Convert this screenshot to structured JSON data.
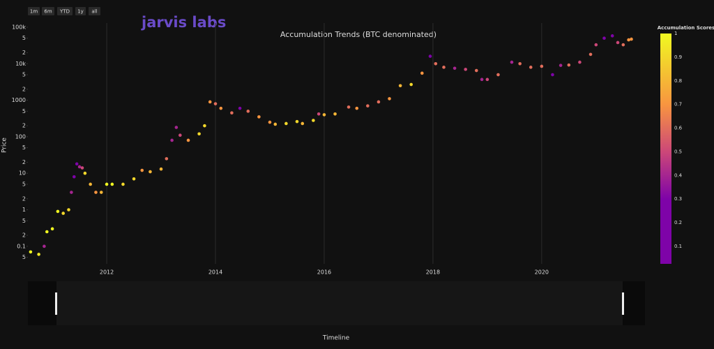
{
  "chart_data": {
    "type": "scatter",
    "title": "Accumulation Trends (BTC denominated)",
    "watermark": "jarvis labs",
    "x_label": "Timeline",
    "y_label": "Price",
    "range_buttons": [
      "1m",
      "6m",
      "YTD",
      "1y",
      "all"
    ],
    "log_y": true,
    "grid": true,
    "xlim": [
      2010.55,
      2021.9
    ],
    "xticks": [
      2012,
      2014,
      2016,
      2018,
      2020
    ],
    "ylim": [
      0.033,
      130000
    ],
    "yticks": [
      {
        "value": 100000,
        "label": "100k"
      },
      {
        "value": 50000,
        "label": "5"
      },
      {
        "value": 20000,
        "label": "2"
      },
      {
        "value": 10000,
        "label": "10k"
      },
      {
        "value": 5000,
        "label": "5"
      },
      {
        "value": 2000,
        "label": "2"
      },
      1000,
      {
        "value": 500,
        "label": "5"
      },
      {
        "value": 200,
        "label": "2"
      },
      100,
      {
        "value": 50,
        "label": "5"
      },
      {
        "value": 20,
        "label": "2"
      },
      10,
      5,
      2,
      1,
      {
        "value": 0.5,
        "label": "5"
      },
      {
        "value": 0.2,
        "label": "2"
      },
      0.1,
      {
        "value": 0.05,
        "label": "5"
      }
    ],
    "x": [
      2010.6,
      2010.75,
      2010.85,
      2010.9,
      2011.0,
      2011.1,
      2011.2,
      2011.3,
      2011.35,
      2011.4,
      2011.45,
      2011.5,
      2011.55,
      2011.6,
      2011.7,
      2011.8,
      2011.9,
      2012.0,
      2012.1,
      2012.3,
      2012.5,
      2012.65,
      2012.8,
      2013.0,
      2013.1,
      2013.2,
      2013.28,
      2013.35,
      2013.5,
      2013.7,
      2013.8,
      2013.9,
      2014.0,
      2014.1,
      2014.3,
      2014.45,
      2014.6,
      2014.8,
      2015.0,
      2015.1,
      2015.3,
      2015.5,
      2015.6,
      2015.8,
      2015.9,
      2016.0,
      2016.2,
      2016.45,
      2016.6,
      2016.8,
      2017.0,
      2017.2,
      2017.4,
      2017.6,
      2017.8,
      2017.95,
      2018.05,
      2018.2,
      2018.4,
      2018.6,
      2018.8,
      2018.9,
      2019.0,
      2019.2,
      2019.45,
      2019.6,
      2019.8,
      2020.0,
      2020.2,
      2020.35,
      2020.5,
      2020.7,
      2020.9,
      2021.0,
      2021.15,
      2021.3,
      2021.4,
      2021.5,
      2021.6,
      2021.65
    ],
    "values": [
      0.07,
      0.06,
      0.1,
      0.25,
      0.3,
      0.9,
      0.8,
      1.0,
      3,
      8,
      18,
      15,
      14,
      10,
      5,
      3,
      3,
      5,
      5,
      5,
      7,
      12,
      11,
      13,
      25,
      80,
      180,
      110,
      80,
      120,
      200,
      900,
      800,
      600,
      450,
      600,
      500,
      350,
      250,
      220,
      230,
      260,
      230,
      280,
      420,
      400,
      420,
      650,
      600,
      700,
      900,
      1100,
      2500,
      2700,
      5500,
      16000,
      10000,
      8000,
      7500,
      7000,
      6500,
      3700,
      3700,
      5000,
      11000,
      10000,
      8000,
      8500,
      5000,
      9000,
      9200,
      11000,
      18000,
      33000,
      50000,
      58000,
      38000,
      33000,
      45000,
      47000
    ],
    "color_values": [
      1,
      0.95,
      0.4,
      1,
      1,
      1,
      0.9,
      0.9,
      0.4,
      0.3,
      0.3,
      0.4,
      0.5,
      0.9,
      0.8,
      0.7,
      0.8,
      1,
      1,
      0.9,
      0.9,
      0.7,
      0.8,
      0.8,
      0.6,
      0.4,
      0.4,
      0.5,
      0.7,
      0.9,
      0.9,
      0.7,
      0.6,
      0.7,
      0.6,
      0.3,
      0.6,
      0.7,
      0.7,
      0.8,
      0.9,
      0.9,
      0.8,
      0.9,
      0.5,
      0.8,
      0.8,
      0.6,
      0.7,
      0.6,
      0.6,
      0.7,
      0.8,
      0.9,
      0.7,
      0.3,
      0.6,
      0.6,
      0.4,
      0.5,
      0.6,
      0.4,
      0.5,
      0.6,
      0.4,
      0.6,
      0.6,
      0.6,
      0.3,
      0.4,
      0.6,
      0.5,
      0.6,
      0.5,
      0.3,
      0.3,
      0.5,
      0.6,
      0.7,
      0.7
    ],
    "colorscale": [
      [
        0,
        "#0d0887"
      ],
      [
        0.3,
        "#7e03a8"
      ],
      [
        0.5,
        "#cc4778"
      ],
      [
        0.7,
        "#f89540"
      ],
      [
        1,
        "#f0f921"
      ]
    ],
    "colorbar": {
      "title": "Accumulation Scores",
      "lim": [
        0.026,
        1
      ],
      "ticks": [
        0.1,
        0.2,
        0.3,
        0.4,
        0.5,
        0.6,
        0.7,
        0.8,
        0.9,
        1
      ]
    }
  }
}
